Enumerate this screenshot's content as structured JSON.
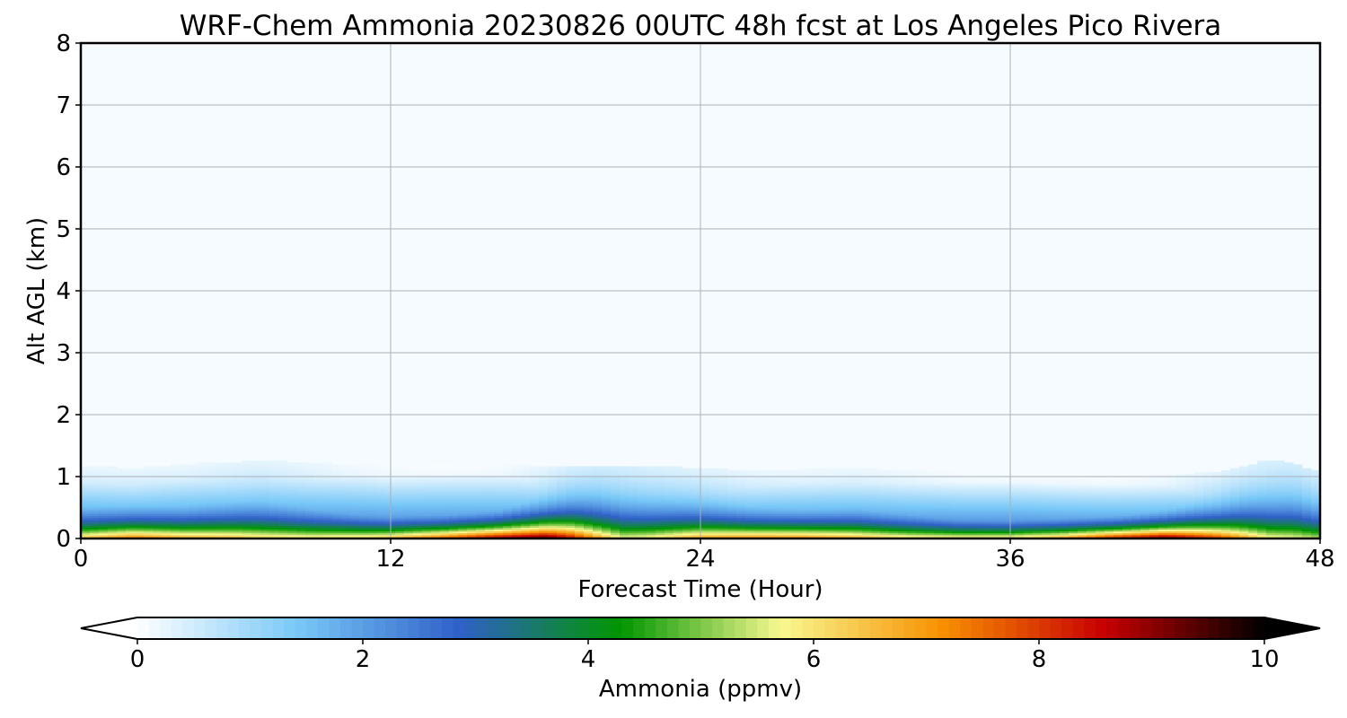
{
  "chart_data": {
    "type": "heatmap",
    "title": "WRF-Chem Ammonia  20230826 00UTC 48h fcst at Los Angeles Pico Rivera",
    "xlabel": "Forecast Time (Hour)",
    "ylabel": "Alt AGL (km)",
    "xlim": [
      0,
      48
    ],
    "ylim": [
      0,
      8
    ],
    "xticks": [
      "0",
      "12",
      "24",
      "36",
      "48"
    ],
    "yticks": [
      "0",
      "1",
      "2",
      "3",
      "4",
      "5",
      "6",
      "7",
      "8"
    ],
    "grid": true,
    "colorbar": {
      "label": "Ammonia  (ppmv)",
      "range": [
        0,
        10
      ],
      "ticks": [
        "0",
        "2",
        "4",
        "6",
        "8",
        "10"
      ],
      "extend": "both",
      "colors": [
        "#ffffff",
        "#78c8f8",
        "#3060c8",
        "#009600",
        "#f8f890",
        "#f89000",
        "#c80000",
        "#000000"
      ]
    },
    "profiles": {
      "hours": [
        0,
        2,
        4,
        6,
        7,
        9,
        11,
        12,
        14,
        16,
        18,
        19,
        20,
        21,
        22,
        24,
        26,
        28,
        30,
        32,
        34,
        36,
        38,
        40,
        42,
        44,
        46,
        47,
        48
      ],
      "surface_ppmv": [
        6.8,
        7.8,
        7.2,
        6.9,
        6.6,
        6.4,
        6.7,
        7.0,
        8.2,
        9.6,
        10.2,
        9.0,
        7.3,
        6.0,
        6.2,
        7.3,
        7.6,
        7.6,
        7.2,
        6.6,
        6.5,
        6.6,
        7.4,
        9.2,
        10.2,
        8.6,
        6.2,
        6.0,
        5.6
      ],
      "top_km": [
        1.05,
        1.02,
        1.08,
        1.12,
        1.15,
        1.1,
        1.08,
        1.05,
        1.07,
        1.08,
        1.05,
        1.05,
        1.06,
        1.06,
        1.05,
        1.02,
        0.98,
        1.0,
        1.02,
        0.98,
        0.95,
        0.95,
        0.92,
        0.9,
        0.92,
        0.95,
        1.15,
        1.1,
        0.95
      ],
      "scale_km": [
        0.34,
        0.32,
        0.34,
        0.38,
        0.4,
        0.36,
        0.3,
        0.28,
        0.26,
        0.26,
        0.32,
        0.38,
        0.43,
        0.45,
        0.42,
        0.36,
        0.31,
        0.3,
        0.32,
        0.3,
        0.26,
        0.25,
        0.24,
        0.22,
        0.24,
        0.32,
        0.46,
        0.48,
        0.42
      ]
    }
  }
}
